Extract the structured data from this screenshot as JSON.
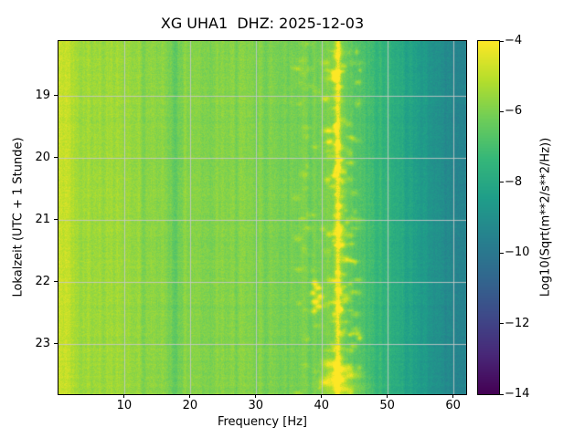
{
  "chart_data": {
    "type": "heatmap",
    "subtype": "spectrogram",
    "title": "XG UHA1  DHZ: 2025-12-03",
    "xlabel": "Frequency [Hz]",
    "ylabel": "Lokalzeit (UTC + 1 Stunde)",
    "x_range_hz": [
      0,
      62
    ],
    "x_ticks": [
      10,
      20,
      30,
      40,
      50,
      60
    ],
    "y_range_hours": [
      18.12,
      23.81
    ],
    "y_ticks": [
      19,
      20,
      21,
      22,
      23
    ],
    "grid": true,
    "colormap": "viridis",
    "colorbar": {
      "label": "Log10(Sqrt(m**2/s**2/Hz))",
      "range": [
        -14,
        -4
      ],
      "ticks": [
        -4,
        -6,
        -8,
        -10,
        -12,
        -14
      ],
      "tick_labels": [
        "−4",
        "−6",
        "−8",
        "−10",
        "−12",
        "−14"
      ]
    },
    "background_profile": [
      [
        0,
        -5.1
      ],
      [
        2,
        -5.4
      ],
      [
        6,
        -5.55
      ],
      [
        10,
        -5.6
      ],
      [
        16,
        -5.75
      ],
      [
        22,
        -5.85
      ],
      [
        30,
        -5.95
      ],
      [
        36,
        -6.05
      ],
      [
        41,
        -6.15
      ],
      [
        44,
        -6.5
      ],
      [
        47,
        -7.0
      ],
      [
        50,
        -7.5
      ],
      [
        53,
        -8.1
      ],
      [
        56,
        -8.7
      ],
      [
        59,
        -9.2
      ],
      [
        62,
        -9.6
      ]
    ],
    "noise": {
      "seed": 42,
      "column": 0.32,
      "pixel": 0.27,
      "row": 0.12
    },
    "features": {
      "vlines": [
        {
          "f": 42.5,
          "sigma": 0.28,
          "boost": 2.2,
          "flicker": 0.55
        },
        {
          "f": 42.5,
          "sigma": 0.9,
          "boost": 0.45,
          "flicker": 0.7
        },
        {
          "f": 17.6,
          "sigma": 0.6,
          "boost": -0.8,
          "flicker": 0.3
        },
        {
          "f": 13.0,
          "sigma": 0.4,
          "boost": -0.3,
          "flicker": 0.3
        },
        {
          "f": 1.2,
          "sigma": 0.9,
          "boost": 0.5,
          "flicker": 0.3
        },
        {
          "f": 5.0,
          "sigma": 1.5,
          "boost": 0.15,
          "flicker": 0.5
        },
        {
          "f": 8.6,
          "sigma": 0.5,
          "boost": 0.3,
          "flicker": 0.5
        }
      ],
      "blobs": [
        {
          "f": 39.0,
          "t": 22.02,
          "df": 0.35,
          "dt": 0.035,
          "boost": 2.2
        },
        {
          "f": 39.5,
          "t": 22.1,
          "df": 0.4,
          "dt": 0.03,
          "boost": 2.4
        },
        {
          "f": 38.7,
          "t": 22.18,
          "df": 0.35,
          "dt": 0.03,
          "boost": 2.0
        },
        {
          "f": 39.8,
          "t": 22.24,
          "df": 0.4,
          "dt": 0.035,
          "boost": 2.3
        },
        {
          "f": 39.1,
          "t": 22.32,
          "df": 0.45,
          "dt": 0.03,
          "boost": 2.5
        },
        {
          "f": 39.6,
          "t": 22.4,
          "df": 0.4,
          "dt": 0.03,
          "boost": 2.2
        },
        {
          "f": 38.9,
          "t": 22.47,
          "df": 0.35,
          "dt": 0.03,
          "boost": 1.8
        },
        {
          "f": 40.6,
          "t": 19.05,
          "df": 0.4,
          "dt": 0.03,
          "boost": 1.5
        },
        {
          "f": 41.0,
          "t": 20.35,
          "df": 0.35,
          "dt": 0.025,
          "boost": 1.1
        },
        {
          "f": 40.2,
          "t": 21.15,
          "df": 0.3,
          "dt": 0.025,
          "boost": 0.9
        },
        {
          "f": 41.2,
          "t": 23.32,
          "df": 0.8,
          "dt": 0.05,
          "boost": 1.6
        },
        {
          "f": 43.2,
          "t": 23.4,
          "df": 0.9,
          "dt": 0.05,
          "boost": 1.5
        },
        {
          "f": 45.0,
          "t": 23.5,
          "df": 1.0,
          "dt": 0.05,
          "boost": 1.3
        },
        {
          "f": 42.0,
          "t": 23.55,
          "df": 1.2,
          "dt": 0.06,
          "boost": 1.5
        },
        {
          "f": 40.5,
          "t": 23.62,
          "df": 0.6,
          "dt": 0.04,
          "boost": 1.4
        },
        {
          "f": 43.5,
          "t": 23.72,
          "df": 2.2,
          "dt": 0.08,
          "boost": 1.2
        }
      ],
      "speckle_bands": [
        {
          "f0": 40.5,
          "f1": 46.0,
          "count": 120,
          "boost": [
            0.4,
            1.3
          ],
          "seed": 7
        },
        {
          "f0": 36.0,
          "f1": 40.0,
          "count": 35,
          "boost": [
            0.3,
            0.9
          ],
          "seed": 11
        },
        {
          "f0": 41.8,
          "f1": 43.2,
          "count": 60,
          "boost": [
            0.5,
            1.5
          ],
          "seed": 13
        }
      ]
    }
  }
}
